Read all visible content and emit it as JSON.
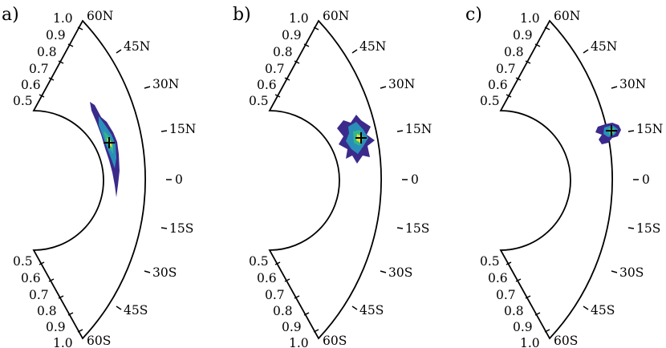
{
  "panels": [
    {
      "label": "a)",
      "ticks_r": [
        "1.0",
        "0.9",
        "0.8",
        "0.7",
        "0.6",
        "0.5"
      ],
      "ticks_lat": [
        "60N",
        "45N",
        "30N",
        "15N",
        "0",
        "15S",
        "30S",
        "45S",
        "60S"
      ],
      "blob": {
        "cx": 136,
        "cy": 178,
        "shape": "elongated"
      }
    },
    {
      "label": "b)",
      "ticks_r": [
        "1.0",
        "0.9",
        "0.8",
        "0.7",
        "0.6",
        "0.5"
      ],
      "ticks_lat": [
        "60N",
        "45N",
        "30N",
        "15N",
        "0",
        "15S",
        "30S",
        "45S",
        "60S"
      ],
      "blob": {
        "cx": 450,
        "cy": 172,
        "shape": "star"
      }
    },
    {
      "label": "c)",
      "ticks_r": [
        "1.0",
        "0.9",
        "0.8",
        "0.7",
        "0.6",
        "0.5"
      ],
      "ticks_lat": [
        "60N",
        "45N",
        "30N",
        "15N",
        "0",
        "15S",
        "30S",
        "45S",
        "60S"
      ],
      "blob": {
        "cx": 762,
        "cy": 163,
        "shape": "small"
      }
    }
  ],
  "colors": {
    "outline": "#000000",
    "density_low": "#3b2a8c",
    "density_mid": "#2a8fb8",
    "density_high": "#e6e030",
    "marker": "#000000"
  }
}
